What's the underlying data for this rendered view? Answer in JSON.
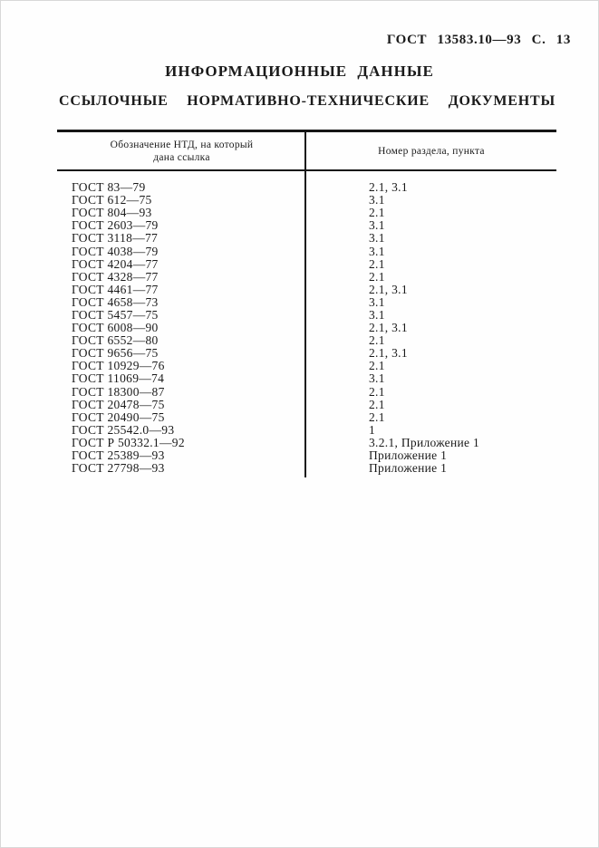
{
  "page_header": "ГОСТ 13583.10—93 С. 13",
  "title": "ИНФОРМАЦИОННЫЕ ДАННЫЕ",
  "subtitle": "ССЫЛОЧНЫЕ НОРМАТИВНО-ТЕХНИЧЕСКИЕ ДОКУМЕНТЫ",
  "colors": {
    "ink": "#1a1a1a",
    "paper": "#fefefe"
  },
  "table": {
    "header": {
      "col1_line1": "Обозначение НТД, на который",
      "col1_line2": "дана ссылка",
      "col2": "Номер раздела, пункта"
    },
    "rows": [
      {
        "doc": "ГОСТ 83—79",
        "ref": "2.1, 3.1"
      },
      {
        "doc": "ГОСТ 612—75",
        "ref": "3.1"
      },
      {
        "doc": "ГОСТ 804—93",
        "ref": "2.1"
      },
      {
        "doc": "ГОСТ 2603—79",
        "ref": "3.1"
      },
      {
        "doc": "ГОСТ 3118—77",
        "ref": "3.1"
      },
      {
        "doc": "ГОСТ 4038—79",
        "ref": "3.1"
      },
      {
        "doc": "ГОСТ 4204—77",
        "ref": "2.1"
      },
      {
        "doc": "ГОСТ 4328—77",
        "ref": "2.1"
      },
      {
        "doc": "ГОСТ 4461—77",
        "ref": "2.1, 3.1"
      },
      {
        "doc": "ГОСТ 4658—73",
        "ref": "3.1"
      },
      {
        "doc": "ГОСТ 5457—75",
        "ref": "3.1"
      },
      {
        "doc": "ГОСТ 6008—90",
        "ref": "2.1, 3.1"
      },
      {
        "doc": "ГОСТ 6552—80",
        "ref": "2.1"
      },
      {
        "doc": "ГОСТ 9656—75",
        "ref": "2.1, 3.1"
      },
      {
        "doc": "ГОСТ 10929—76",
        "ref": "2.1"
      },
      {
        "doc": "ГОСТ 11069—74",
        "ref": "3.1"
      },
      {
        "doc": "ГОСТ 18300—87",
        "ref": "2.1"
      },
      {
        "doc": "ГОСТ 20478—75",
        "ref": "2.1"
      },
      {
        "doc": "ГОСТ 20490—75",
        "ref": "2.1"
      },
      {
        "doc": "ГОСТ 25542.0—93",
        "ref": "1"
      },
      {
        "doc": "ГОСТ Р 50332.1—92",
        "ref": "3.2.1, Приложение 1"
      },
      {
        "doc": "ГОСТ 25389—93",
        "ref": "Приложение 1"
      },
      {
        "doc": "ГОСТ 27798—93",
        "ref": "Приложение 1"
      }
    ]
  }
}
